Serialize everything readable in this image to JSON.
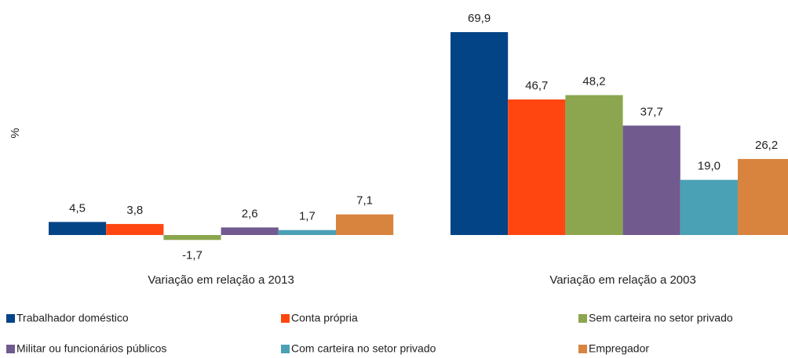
{
  "chart_data": {
    "type": "bar",
    "y_label": "%",
    "categories": [
      "Variação em relação a 2013",
      "Variação em relação a 2003"
    ],
    "series": [
      {
        "name": "Trabalhador doméstico",
        "color": "#034487",
        "values": [
          4.5,
          69.9
        ],
        "value_labels": [
          "4,5",
          "69,9"
        ]
      },
      {
        "name": "Conta própria",
        "color": "#ff4611",
        "values": [
          3.8,
          46.7
        ],
        "value_labels": [
          "3,8",
          "46,7"
        ]
      },
      {
        "name": "Sem carteira no setor privado",
        "color": "#8ba64e",
        "values": [
          -1.7,
          48.2
        ],
        "value_labels": [
          "-1,7",
          "48,2"
        ]
      },
      {
        "name": "Militar ou funcionários públicos",
        "color": "#705a8e",
        "values": [
          2.6,
          37.7
        ],
        "value_labels": [
          "2,6",
          "37,7"
        ]
      },
      {
        "name": "Com carteira no setor privado",
        "color": "#4aa0b5",
        "values": [
          1.7,
          19.0
        ],
        "value_labels": [
          "1,7",
          "19,0"
        ]
      },
      {
        "name": "Empregador",
        "color": "#d8843f",
        "values": [
          7.1,
          26.2
        ],
        "value_labels": [
          "7,1",
          "26,2"
        ]
      }
    ]
  }
}
